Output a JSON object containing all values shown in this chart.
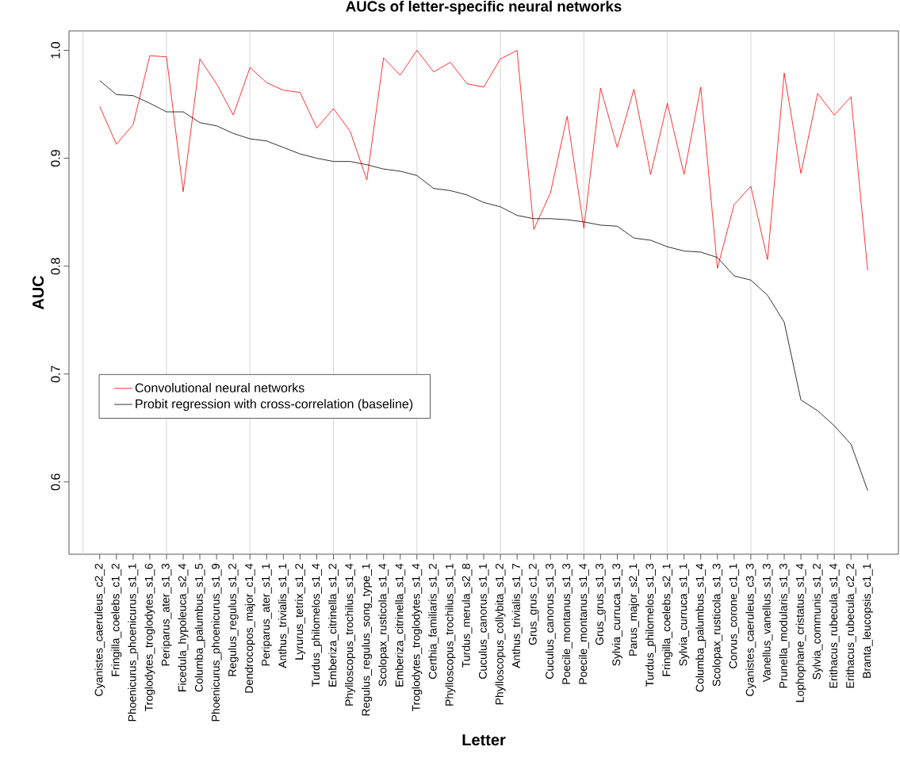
{
  "chart_data": {
    "type": "line",
    "title": "AUCs of letter-specific neural networks",
    "xlabel": "Letter",
    "ylabel": "AUC",
    "categories": [
      "Cyanistes_caeruleus_c2_2",
      "Fringilla_coelebs_c1_2",
      "Phoenicurus_phoenicurus_s1_1",
      "Troglodytes_troglodytes_s1_6",
      "Periparus_ater_s1_3",
      "Ficedula_hypoleuca_s2_4",
      "Columba_palumbus_s1_5",
      "Phoenicurus_phoenicurus_s1_9",
      "Regulus_regulus_s1_2",
      "Dendrocopos_major_c1_4",
      "Periparus_ater_s1_1",
      "Anthus_trivialis_s1_1",
      "Lyrurus_tetrix_s1_2",
      "Turdus_philomelos_s1_4",
      "Emberiza_citrinella_s1_2",
      "Phylloscopus_trochilus_s1_4",
      "Regulus_regulus_song_type_1",
      "Scolopax_rusticola_s1_4",
      "Emberiza_citrinella_s1_4",
      "Troglodytes_troglodytes_s1_4",
      "Certhia_familiaris_s1_2",
      "Phylloscopus_trochilus_s1_1",
      "Turdus_merula_s2_8",
      "Cuculus_canorus_s1_1",
      "Phylloscopus_collybita_s1_2",
      "Anthus_trivialis_s1_7",
      "Grus_grus_c1_2",
      "Cuculus_canorus_s1_3",
      "Poecile_montanus_s1_3",
      "Poecile_montanus_s1_4",
      "Grus_grus_s1_3",
      "Sylvia_curruca_s1_3",
      "Parus_major_s2_1",
      "Turdus_philomelos_s1_3",
      "Fringilla_coelebs_s2_1",
      "Sylvia_curruca_s1_1",
      "Columba_palumbus_s1_4",
      "Scolopax_rusticola_s1_3",
      "Corvus_corone_c1_1",
      "Cyanistes_caeruleus_c3_3",
      "Vanellus_vanellus_s1_3",
      "Prunella_modularis_s1_3",
      "Lophophane_cristatus_s1_4",
      "Sylvia_communis_s1_2",
      "Erithacus_rubecula_s1_4",
      "Erithacus_rubecula_c2_2",
      "Branta_leucopsis_c1_1"
    ],
    "series": [
      {
        "name": "Convolutional neural networks",
        "color": "#ff0000",
        "values": [
          0.948,
          0.913,
          0.931,
          0.995,
          0.994,
          0.869,
          0.992,
          0.969,
          0.94,
          0.984,
          0.97,
          0.963,
          0.961,
          0.928,
          0.946,
          0.925,
          0.88,
          0.993,
          0.977,
          1.0,
          0.98,
          0.989,
          0.969,
          0.966,
          0.992,
          1.0,
          0.834,
          0.868,
          0.939,
          0.835,
          0.965,
          0.91,
          0.964,
          0.885,
          0.951,
          0.885,
          0.966,
          0.798,
          0.857,
          0.874,
          0.806,
          0.979,
          0.886,
          0.96,
          0.94,
          0.957,
          0.796
        ]
      },
      {
        "name": "Probit regression with cross-correlation (baseline)",
        "color": "#000000",
        "values": [
          0.972,
          0.959,
          0.958,
          0.951,
          0.943,
          0.943,
          0.933,
          0.93,
          0.923,
          0.918,
          0.916,
          0.91,
          0.904,
          0.9,
          0.897,
          0.897,
          0.894,
          0.89,
          0.888,
          0.884,
          0.872,
          0.87,
          0.866,
          0.859,
          0.855,
          0.847,
          0.844,
          0.844,
          0.843,
          0.841,
          0.838,
          0.837,
          0.826,
          0.824,
          0.818,
          0.814,
          0.813,
          0.808,
          0.791,
          0.787,
          0.773,
          0.748,
          0.676,
          0.666,
          0.652,
          0.635,
          0.592
        ]
      }
    ],
    "ylim": [
      0.533,
      1.018
    ],
    "yticks": [
      0.6,
      0.7,
      0.8,
      0.9,
      {
        "value": 1.0,
        "label": "1.0"
      }
    ],
    "grid": "x",
    "legend": "left",
    "line_style": "solid",
    "marker": "none"
  }
}
